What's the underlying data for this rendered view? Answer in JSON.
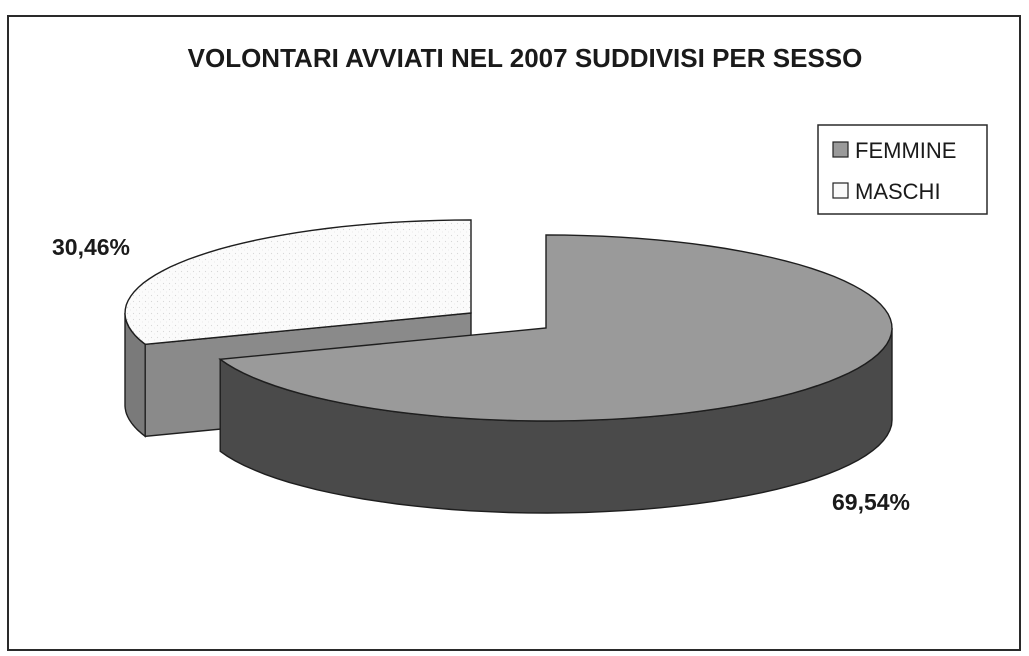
{
  "chart_data": {
    "type": "pie",
    "title": "VOLONTARI AVVIATI NEL 2007 SUDDIVISI PER SESSO",
    "style": "3d-exploded",
    "legend_position": "top-right",
    "slices": [
      {
        "label": "FEMMINE",
        "value": 69.54,
        "value_label": "69,54%",
        "color": "#9a9a9a",
        "side_color": "#4a4a4a"
      },
      {
        "label": "MASCHI",
        "value": 30.46,
        "value_label": "30,46%",
        "color": "#fafafa",
        "side_color": "#7a7a7a"
      }
    ]
  }
}
